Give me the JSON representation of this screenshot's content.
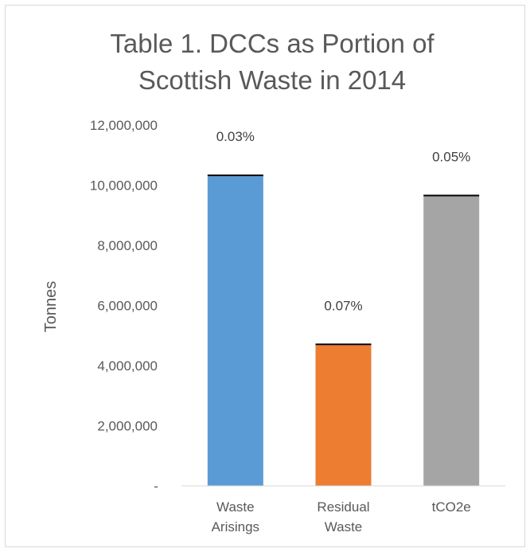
{
  "chart_data": {
    "type": "bar",
    "title_lines": [
      "Table 1. DCCs as Portion of",
      "Scottish Waste in 2014"
    ],
    "ylabel": "Tonnes",
    "xlabel": "",
    "ylim": [
      0,
      12000000
    ],
    "y_ticks": [
      {
        "value": 0,
        "label": "-"
      },
      {
        "value": 2000000,
        "label": "2,000,000"
      },
      {
        "value": 4000000,
        "label": "4,000,000"
      },
      {
        "value": 6000000,
        "label": "6,000,000"
      },
      {
        "value": 8000000,
        "label": "8,000,000"
      },
      {
        "value": 10000000,
        "label": "10,000,000"
      },
      {
        "value": 12000000,
        "label": "12,000,000"
      }
    ],
    "grid": false,
    "categories": [
      {
        "lines": [
          "Waste",
          "Arisings"
        ],
        "value": 10300000,
        "dcc_portion_label": "0.03%",
        "color": "#5b9bd5"
      },
      {
        "lines": [
          "Residual",
          "Waste"
        ],
        "value": 4680000,
        "dcc_portion_label": "0.07%",
        "color": "#ed7d31"
      },
      {
        "lines": [
          "tCO2e"
        ],
        "value": 9630000,
        "dcc_portion_label": "0.05%",
        "color": "#a5a5a5"
      }
    ],
    "stack_top_color": "#000000"
  }
}
